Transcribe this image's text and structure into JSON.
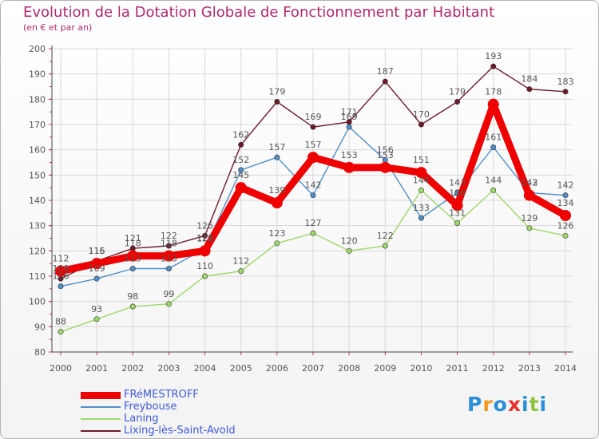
{
  "title": "Evolution de la Dotation Globale de Fonctionnement par Habitant",
  "subtitle": "(en € et par an)",
  "logo_text": "Proxiti",
  "colors": {
    "title": "#b0296b",
    "axis": "#444444",
    "grid": "#d8d8d8",
    "tick_mark": "#cc3344",
    "label_text": "#555555",
    "legend_text": "#3f5ad8"
  },
  "chart_data": {
    "type": "line",
    "title": "Evolution de la Dotation Globale de Fonctionnement par Habitant",
    "subtitle": "(en € et par an)",
    "xlabel": "",
    "ylabel": "",
    "ylim": [
      80,
      200
    ],
    "ytick_step": 10,
    "yticks": [
      "80",
      "90",
      "100",
      "110",
      "120",
      "130",
      "140",
      "150",
      "160",
      "170",
      "180",
      "190",
      "200"
    ],
    "grid": true,
    "legend_position": "bottom-left",
    "categories": [
      "2000",
      "2001",
      "2002",
      "2003",
      "2004",
      "2005",
      "2006",
      "2007",
      "2008",
      "2009",
      "2010",
      "2011",
      "2012",
      "2013",
      "2014"
    ],
    "series": [
      {
        "name": "Lixing-lès-Saint-Avold",
        "color": "#6e1a2a",
        "values": [
          109,
          116,
          121,
          122,
          126,
          162,
          179,
          169,
          171,
          187,
          170,
          179,
          193,
          184,
          183
        ],
        "labels": [
          "109",
          "116",
          "121",
          "122",
          "126",
          "162",
          "179",
          "169",
          "171",
          "187",
          "170",
          "179",
          "193",
          "184",
          "183"
        ],
        "label_pos": "above",
        "thick": false
      },
      {
        "name": "Freybouse",
        "color": "#4f8ec9",
        "values": [
          106,
          109,
          113,
          113,
          121,
          152,
          157,
          142,
          169,
          156,
          133,
          143,
          161,
          143,
          142
        ],
        "labels": [
          "106",
          "109",
          "113",
          "113",
          "121",
          "152",
          "157",
          "142",
          "169",
          "156",
          "133",
          "143",
          "161",
          "143",
          "142"
        ],
        "label_pos": "above",
        "thick": false
      },
      {
        "name": "Laning",
        "color": "#9ed86b",
        "values": [
          88,
          93,
          98,
          99,
          110,
          112,
          123,
          127,
          120,
          122,
          144,
          131,
          144,
          129,
          126
        ],
        "labels": [
          "88",
          "93",
          "98",
          "99",
          "110",
          "112",
          "123",
          "127",
          "120",
          "122",
          "144",
          "131",
          "144",
          "129",
          "126"
        ],
        "label_pos": "above",
        "thick": false
      },
      {
        "name": "FRéMESTROFF",
        "color": "#ee0000",
        "values": [
          112,
          115,
          118,
          118,
          120,
          145,
          139,
          157,
          153,
          153,
          151,
          138,
          178,
          142,
          134
        ],
        "labels": [
          "112",
          "115",
          "118",
          "118",
          "120",
          "145",
          "139",
          "157",
          "153",
          "153",
          "151",
          "138",
          "178",
          "142",
          "134"
        ],
        "label_pos": "above",
        "thick": true
      }
    ],
    "legend_order": [
      "FRéMESTROFF",
      "Freybouse",
      "Laning",
      "Lixing-lès-Saint-Avold"
    ]
  }
}
